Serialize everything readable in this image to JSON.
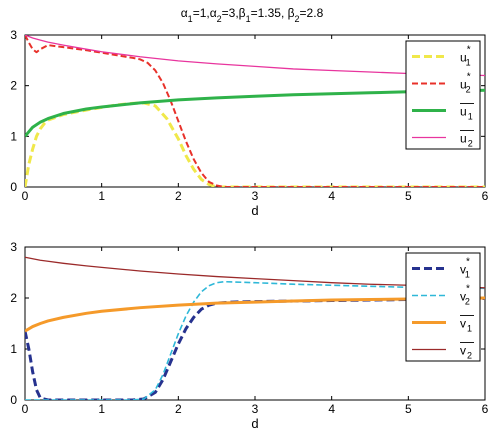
{
  "figure": {
    "title": "α1=1,α2=3,β1=1.35, β2=2.8",
    "title_parts": [
      {
        "text": "α",
        "style": "normal"
      },
      {
        "text": "1",
        "style": "sub"
      },
      {
        "text": "=1,",
        "style": "normal"
      },
      {
        "text": "α",
        "style": "normal"
      },
      {
        "text": "2",
        "style": "sub"
      },
      {
        "text": "=3,",
        "style": "normal"
      },
      {
        "text": "β",
        "style": "normal"
      },
      {
        "text": "1",
        "style": "sub"
      },
      {
        "text": "=1.35, ",
        "style": "normal"
      },
      {
        "text": "β",
        "style": "normal"
      },
      {
        "text": "2",
        "style": "sub"
      },
      {
        "text": "=2.8",
        "style": "normal"
      }
    ]
  },
  "chart_data": [
    {
      "type": "line",
      "xlabel": "d",
      "ylabel": "",
      "xlim": [
        0,
        6
      ],
      "ylim": [
        0,
        3
      ],
      "xticks": [
        0,
        1,
        2,
        3,
        4,
        5,
        6
      ],
      "yticks": [
        0,
        1,
        2,
        3
      ],
      "grid": false,
      "legend_position": "top-right",
      "series": [
        {
          "name": "u1*",
          "label_base": "u",
          "label_sub": "1",
          "label_sup": "*",
          "overline": false,
          "color": "#f0e84a",
          "dash": "dashed",
          "width": 3,
          "points": [
            [
              0.0,
              0.0
            ],
            [
              0.05,
              0.45
            ],
            [
              0.1,
              0.75
            ],
            [
              0.15,
              1.0
            ],
            [
              0.2,
              1.15
            ],
            [
              0.25,
              1.25
            ],
            [
              0.3,
              1.32
            ],
            [
              0.5,
              1.43
            ],
            [
              0.8,
              1.52
            ],
            [
              1.0,
              1.57
            ],
            [
              1.2,
              1.62
            ],
            [
              1.4,
              1.65
            ],
            [
              1.55,
              1.66
            ],
            [
              1.7,
              1.6
            ],
            [
              1.85,
              1.35
            ],
            [
              2.0,
              0.95
            ],
            [
              2.1,
              0.62
            ],
            [
              2.2,
              0.35
            ],
            [
              2.3,
              0.15
            ],
            [
              2.4,
              0.05
            ],
            [
              2.5,
              0.0
            ],
            [
              3.0,
              0.0
            ],
            [
              4.0,
              0.0
            ],
            [
              5.0,
              0.0
            ],
            [
              6.0,
              0.0
            ]
          ]
        },
        {
          "name": "u2*",
          "label_base": "u",
          "label_sub": "2",
          "label_sup": "*",
          "overline": false,
          "color": "#e8312a",
          "dash": "dashed",
          "width": 2,
          "points": [
            [
              0.0,
              3.0
            ],
            [
              0.05,
              2.85
            ],
            [
              0.1,
              2.72
            ],
            [
              0.15,
              2.66
            ],
            [
              0.2,
              2.72
            ],
            [
              0.3,
              2.8
            ],
            [
              0.5,
              2.76
            ],
            [
              0.8,
              2.7
            ],
            [
              1.0,
              2.65
            ],
            [
              1.2,
              2.6
            ],
            [
              1.4,
              2.55
            ],
            [
              1.5,
              2.52
            ],
            [
              1.6,
              2.45
            ],
            [
              1.7,
              2.3
            ],
            [
              1.8,
              2.05
            ],
            [
              1.9,
              1.7
            ],
            [
              2.0,
              1.3
            ],
            [
              2.1,
              0.9
            ],
            [
              2.2,
              0.55
            ],
            [
              2.3,
              0.28
            ],
            [
              2.4,
              0.1
            ],
            [
              2.5,
              0.03
            ],
            [
              2.6,
              0.0
            ],
            [
              3.0,
              0.0
            ],
            [
              4.0,
              0.0
            ],
            [
              5.0,
              0.0
            ],
            [
              6.0,
              0.0
            ]
          ]
        },
        {
          "name": "ū1",
          "label_base": "u",
          "label_sub": "1",
          "label_sup": "",
          "overline": true,
          "color": "#2fb24a",
          "dash": "solid",
          "width": 3,
          "points": [
            [
              0.0,
              1.0
            ],
            [
              0.1,
              1.18
            ],
            [
              0.2,
              1.28
            ],
            [
              0.3,
              1.35
            ],
            [
              0.5,
              1.45
            ],
            [
              0.8,
              1.54
            ],
            [
              1.0,
              1.58
            ],
            [
              1.5,
              1.66
            ],
            [
              2.0,
              1.72
            ],
            [
              2.5,
              1.76
            ],
            [
              3.0,
              1.79
            ],
            [
              3.5,
              1.82
            ],
            [
              4.0,
              1.84
            ],
            [
              4.5,
              1.86
            ],
            [
              5.0,
              1.88
            ],
            [
              5.5,
              1.89
            ],
            [
              6.0,
              1.91
            ]
          ]
        },
        {
          "name": "ū2",
          "label_base": "u",
          "label_sub": "2",
          "label_sup": "",
          "overline": true,
          "color": "#e8359e",
          "dash": "solid",
          "width": 1.3,
          "points": [
            [
              0.0,
              3.0
            ],
            [
              0.1,
              2.94
            ],
            [
              0.2,
              2.9
            ],
            [
              0.3,
              2.86
            ],
            [
              0.5,
              2.8
            ],
            [
              0.8,
              2.72
            ],
            [
              1.0,
              2.67
            ],
            [
              1.5,
              2.57
            ],
            [
              2.0,
              2.49
            ],
            [
              2.5,
              2.43
            ],
            [
              3.0,
              2.38
            ],
            [
              3.5,
              2.33
            ],
            [
              4.0,
              2.3
            ],
            [
              4.5,
              2.27
            ],
            [
              5.0,
              2.24
            ],
            [
              5.5,
              2.22
            ],
            [
              6.0,
              2.2
            ]
          ]
        }
      ]
    },
    {
      "type": "line",
      "xlabel": "d",
      "ylabel": "",
      "xlim": [
        0,
        6
      ],
      "ylim": [
        0,
        3
      ],
      "xticks": [
        0,
        1,
        2,
        3,
        4,
        5,
        6
      ],
      "yticks": [
        0,
        1,
        2,
        3
      ],
      "grid": false,
      "legend_position": "top-right",
      "series": [
        {
          "name": "v1*",
          "label_base": "v",
          "label_sub": "1",
          "label_sup": "*",
          "overline": false,
          "color": "#26328f",
          "dash": "dashed",
          "width": 3,
          "points": [
            [
              0.0,
              1.35
            ],
            [
              0.05,
              1.0
            ],
            [
              0.1,
              0.55
            ],
            [
              0.15,
              0.2
            ],
            [
              0.2,
              0.04
            ],
            [
              0.3,
              0.0
            ],
            [
              1.0,
              0.0
            ],
            [
              1.4,
              0.0
            ],
            [
              1.55,
              0.02
            ],
            [
              1.7,
              0.15
            ],
            [
              1.8,
              0.4
            ],
            [
              1.9,
              0.75
            ],
            [
              2.0,
              1.1
            ],
            [
              2.1,
              1.4
            ],
            [
              2.2,
              1.62
            ],
            [
              2.3,
              1.78
            ],
            [
              2.4,
              1.86
            ],
            [
              2.5,
              1.9
            ],
            [
              2.7,
              1.92
            ],
            [
              3.0,
              1.93
            ],
            [
              3.5,
              1.94
            ],
            [
              4.0,
              1.95
            ],
            [
              4.5,
              1.96
            ],
            [
              5.0,
              1.97
            ],
            [
              5.5,
              1.98
            ],
            [
              6.0,
              1.99
            ]
          ]
        },
        {
          "name": "v2*",
          "label_base": "v",
          "label_sub": "2",
          "label_sup": "*",
          "overline": false,
          "color": "#2fb8d8",
          "dash": "dashed",
          "width": 1.6,
          "points": [
            [
              0.0,
              0.0
            ],
            [
              0.3,
              0.0
            ],
            [
              1.0,
              0.0
            ],
            [
              1.4,
              0.0
            ],
            [
              1.55,
              0.02
            ],
            [
              1.7,
              0.2
            ],
            [
              1.8,
              0.5
            ],
            [
              1.9,
              0.9
            ],
            [
              2.0,
              1.3
            ],
            [
              2.1,
              1.65
            ],
            [
              2.2,
              1.92
            ],
            [
              2.3,
              2.12
            ],
            [
              2.4,
              2.24
            ],
            [
              2.5,
              2.3
            ],
            [
              2.6,
              2.32
            ],
            [
              3.0,
              2.3
            ],
            [
              3.5,
              2.27
            ],
            [
              4.0,
              2.25
            ],
            [
              4.5,
              2.23
            ],
            [
              5.0,
              2.21
            ],
            [
              5.5,
              2.2
            ],
            [
              6.0,
              2.19
            ]
          ]
        },
        {
          "name": "v̄1",
          "label_base": "v",
          "label_sub": "1",
          "label_sup": "",
          "overline": true,
          "color": "#f59a2a",
          "dash": "solid",
          "width": 3,
          "points": [
            [
              0.0,
              1.35
            ],
            [
              0.1,
              1.44
            ],
            [
              0.2,
              1.5
            ],
            [
              0.3,
              1.55
            ],
            [
              0.5,
              1.62
            ],
            [
              0.8,
              1.7
            ],
            [
              1.0,
              1.74
            ],
            [
              1.5,
              1.81
            ],
            [
              2.0,
              1.86
            ],
            [
              2.5,
              1.9
            ],
            [
              3.0,
              1.92
            ],
            [
              3.5,
              1.94
            ],
            [
              4.0,
              1.96
            ],
            [
              4.5,
              1.97
            ],
            [
              5.0,
              1.98
            ],
            [
              5.5,
              1.99
            ],
            [
              6.0,
              2.0
            ]
          ]
        },
        {
          "name": "v̄2",
          "label_base": "v",
          "label_sub": "2",
          "label_sup": "",
          "overline": true,
          "color": "#9b2a2a",
          "dash": "solid",
          "width": 1.3,
          "points": [
            [
              0.0,
              2.8
            ],
            [
              0.1,
              2.77
            ],
            [
              0.2,
              2.74
            ],
            [
              0.3,
              2.72
            ],
            [
              0.5,
              2.68
            ],
            [
              0.8,
              2.63
            ],
            [
              1.0,
              2.6
            ],
            [
              1.5,
              2.53
            ],
            [
              2.0,
              2.47
            ],
            [
              2.5,
              2.42
            ],
            [
              3.0,
              2.38
            ],
            [
              3.5,
              2.34
            ],
            [
              4.0,
              2.3
            ],
            [
              4.5,
              2.27
            ],
            [
              5.0,
              2.25
            ],
            [
              5.5,
              2.22
            ],
            [
              6.0,
              2.2
            ]
          ]
        }
      ]
    }
  ]
}
